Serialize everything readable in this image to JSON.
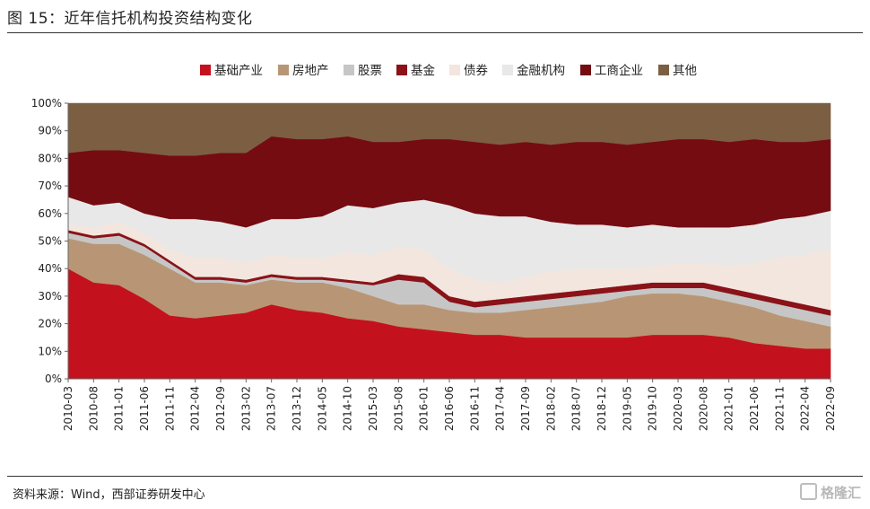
{
  "header": {
    "title": "图 15：近年信托机构投资结构变化"
  },
  "footer": {
    "source": "资料来源：Wind，西部证券研发中心",
    "watermark": "格隆汇"
  },
  "chart_data": {
    "type": "area",
    "stacked": true,
    "title": "",
    "xlabel": "",
    "ylabel": "",
    "ylim": [
      0,
      100
    ],
    "y_ticks": [
      "0%",
      "10%",
      "20%",
      "30%",
      "40%",
      "50%",
      "60%",
      "70%",
      "80%",
      "90%",
      "100%"
    ],
    "legend_position": "top-center",
    "x_tick_labels": [
      "2010-03",
      "2010-08",
      "2011-01",
      "2011-06",
      "2011-11",
      "2012-04",
      "2012-09",
      "2013-02",
      "2013-07",
      "2013-12",
      "2014-05",
      "2014-10",
      "2015-03",
      "2015-08",
      "2016-01",
      "2016-06",
      "2016-11",
      "2017-04",
      "2017-09",
      "2018-02",
      "2018-07",
      "2018-12",
      "2019-05",
      "2019-10",
      "2020-03",
      "2020-08",
      "2021-01",
      "2021-06",
      "2021-11",
      "2022-04",
      "2022-09"
    ],
    "series": [
      {
        "name": "基础产业",
        "color": "#c3121e",
        "values": [
          40,
          35,
          34,
          29,
          23,
          22,
          23,
          24,
          27,
          25,
          24,
          22,
          21,
          19,
          18,
          17,
          16,
          16,
          15,
          15,
          15,
          15,
          15,
          16,
          16,
          16,
          15,
          13,
          12,
          11,
          11
        ]
      },
      {
        "name": "房地产",
        "color": "#b89675",
        "values": [
          11,
          14,
          15,
          16,
          17,
          13,
          12,
          10,
          9,
          10,
          11,
          11,
          9,
          8,
          9,
          8,
          8,
          8,
          10,
          11,
          12,
          13,
          15,
          15,
          15,
          14,
          13,
          13,
          11,
          10,
          8
        ]
      },
      {
        "name": "股票",
        "color": "#c6c6c6",
        "values": [
          2,
          2,
          3,
          3,
          2,
          1,
          1,
          1,
          1,
          1,
          1,
          2,
          4,
          9,
          8,
          3,
          2,
          3,
          3,
          3,
          3,
          3,
          2,
          2,
          2,
          3,
          3,
          3,
          4,
          4,
          4
        ]
      },
      {
        "name": "基金",
        "color": "#8a1218",
        "values": [
          1,
          1,
          1,
          1,
          1,
          1,
          1,
          1,
          1,
          1,
          1,
          1,
          1,
          2,
          2,
          2,
          2,
          2,
          2,
          2,
          2,
          2,
          2,
          2,
          2,
          2,
          2,
          2,
          2,
          2,
          2
        ]
      },
      {
        "name": "债券",
        "color": "#f3e6df",
        "values": [
          2,
          3,
          4,
          4,
          4,
          7,
          7,
          6,
          7,
          7,
          7,
          10,
          10,
          10,
          10,
          10,
          8,
          6,
          7,
          8,
          8,
          7,
          6,
          6,
          7,
          7,
          8,
          11,
          15,
          18,
          22
        ]
      },
      {
        "name": "金融机构",
        "color": "#e8e8e8",
        "values": [
          10,
          8,
          7,
          7,
          11,
          14,
          13,
          13,
          13,
          14,
          15,
          17,
          17,
          16,
          18,
          23,
          24,
          24,
          22,
          18,
          16,
          16,
          15,
          15,
          13,
          13,
          14,
          14,
          14,
          14,
          14
        ]
      },
      {
        "name": "工商企业",
        "color": "#750c12",
        "values": [
          16,
          20,
          19,
          22,
          23,
          23,
          25,
          27,
          30,
          29,
          28,
          25,
          24,
          22,
          22,
          24,
          26,
          26,
          27,
          28,
          30,
          30,
          30,
          30,
          32,
          32,
          31,
          31,
          28,
          27,
          26
        ]
      },
      {
        "name": "其他",
        "color": "#7c5e43",
        "values": [
          18,
          17,
          17,
          18,
          19,
          19,
          18,
          18,
          12,
          13,
          13,
          12,
          14,
          14,
          13,
          13,
          14,
          15,
          14,
          15,
          14,
          14,
          15,
          14,
          13,
          13,
          14,
          13,
          14,
          14,
          13
        ]
      }
    ]
  }
}
